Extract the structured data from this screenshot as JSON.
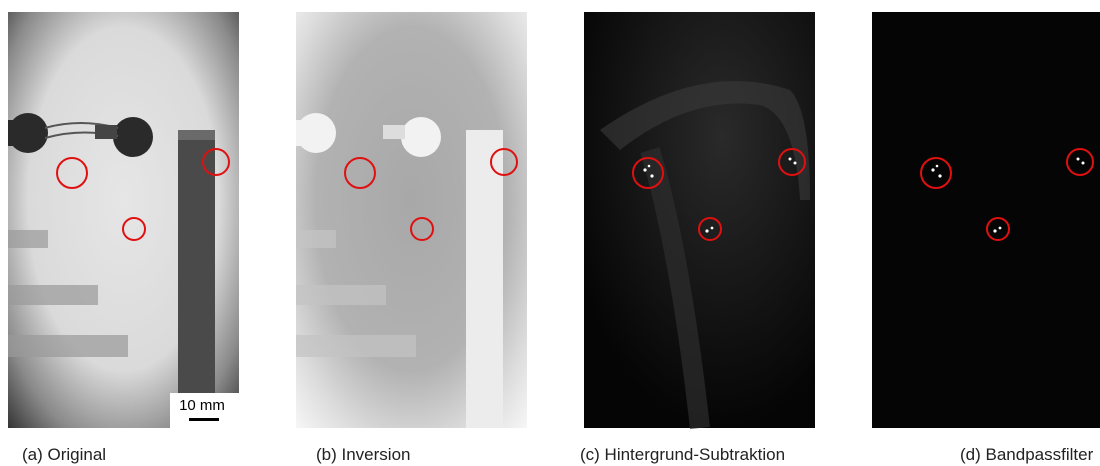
{
  "panels": [
    {
      "caption": "(a) Original"
    },
    {
      "caption": "(b) Inversion"
    },
    {
      "caption": "(c) Hintergrund-Subtraktion"
    },
    {
      "caption": "(d) Bandpassfilter"
    }
  ],
  "scale_bar": {
    "label": "10 mm"
  }
}
